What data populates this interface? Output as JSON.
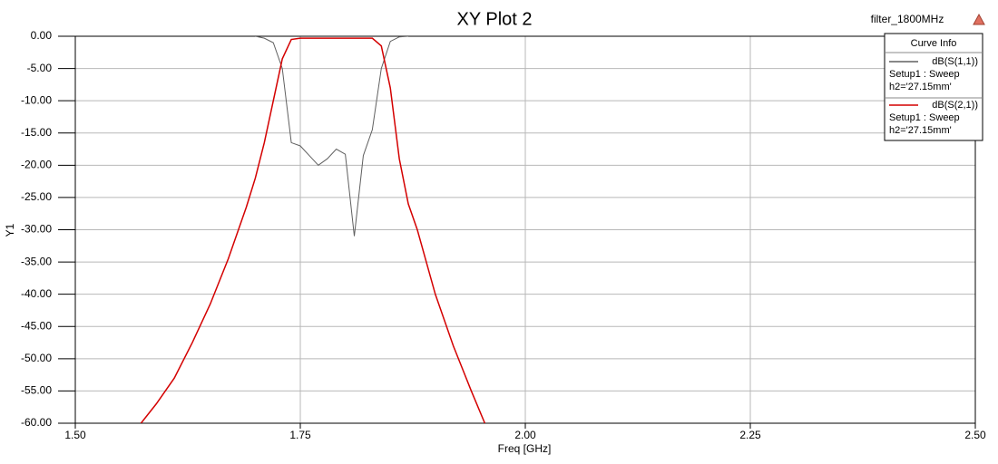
{
  "chart_data": {
    "type": "line",
    "title": "XY Plot 2",
    "design_name": "filter_1800MHz",
    "x_label": "Freq [GHz]",
    "y_label": "Y1",
    "legend_title": "Curve Info",
    "xlim": [
      1.5,
      2.5
    ],
    "ylim": [
      -60,
      0
    ],
    "xticks": [
      {
        "value": 1.5,
        "label": "1.50"
      },
      {
        "value": 1.75,
        "label": "1.75"
      },
      {
        "value": 2.0,
        "label": "2.00"
      },
      {
        "value": 2.25,
        "label": "2.25"
      },
      {
        "value": 2.5,
        "label": "2.50"
      }
    ],
    "yticks": [
      {
        "value": 0,
        "label": "0.00"
      },
      {
        "value": -5,
        "label": "-5.00"
      },
      {
        "value": -10,
        "label": "-10.00"
      },
      {
        "value": -15,
        "label": "-15.00"
      },
      {
        "value": -20,
        "label": "-20.00"
      },
      {
        "value": -25,
        "label": "-25.00"
      },
      {
        "value": -30,
        "label": "-30.00"
      },
      {
        "value": -35,
        "label": "-35.00"
      },
      {
        "value": -40,
        "label": "-40.00"
      },
      {
        "value": -45,
        "label": "-45.00"
      },
      {
        "value": -50,
        "label": "-50.00"
      },
      {
        "value": -55,
        "label": "-55.00"
      },
      {
        "value": -60,
        "label": "-60.00"
      }
    ],
    "grid": true,
    "legend_position": "upper right",
    "series": [
      {
        "name": "dB(S(1,1))",
        "setup": "Setup1 : Sweep",
        "variation": "h2='27.15mm'",
        "color": "#606060",
        "x": [
          1.7,
          1.71,
          1.72,
          1.73,
          1.74,
          1.75,
          1.76,
          1.77,
          1.78,
          1.79,
          1.8,
          1.81,
          1.82,
          1.83,
          1.84,
          1.85,
          1.86,
          1.87
        ],
        "values": [
          0,
          -0.3,
          -1,
          -5,
          -16.5,
          -17,
          -18.5,
          -20,
          -19,
          -17.5,
          -18.3,
          -31,
          -18.5,
          -14.5,
          -5,
          -0.8,
          -0.1,
          0
        ]
      },
      {
        "name": "dB(S(2,1))",
        "setup": "Setup1 : Sweep",
        "variation": "h2='27.15mm'",
        "color": "#d40000",
        "x": [
          1.573,
          1.59,
          1.61,
          1.63,
          1.65,
          1.67,
          1.69,
          1.7,
          1.71,
          1.72,
          1.73,
          1.74,
          1.75,
          1.8,
          1.83,
          1.84,
          1.85,
          1.86,
          1.87,
          1.88,
          1.9,
          1.92,
          1.94,
          1.955
        ],
        "values": [
          -60,
          -57,
          -53,
          -47.5,
          -41.5,
          -34.5,
          -26.5,
          -22,
          -16.5,
          -10,
          -3.5,
          -0.5,
          -0.3,
          -0.3,
          -0.3,
          -1.5,
          -8,
          -19,
          -26,
          -30,
          -40,
          -48,
          -55,
          -60
        ]
      }
    ]
  }
}
